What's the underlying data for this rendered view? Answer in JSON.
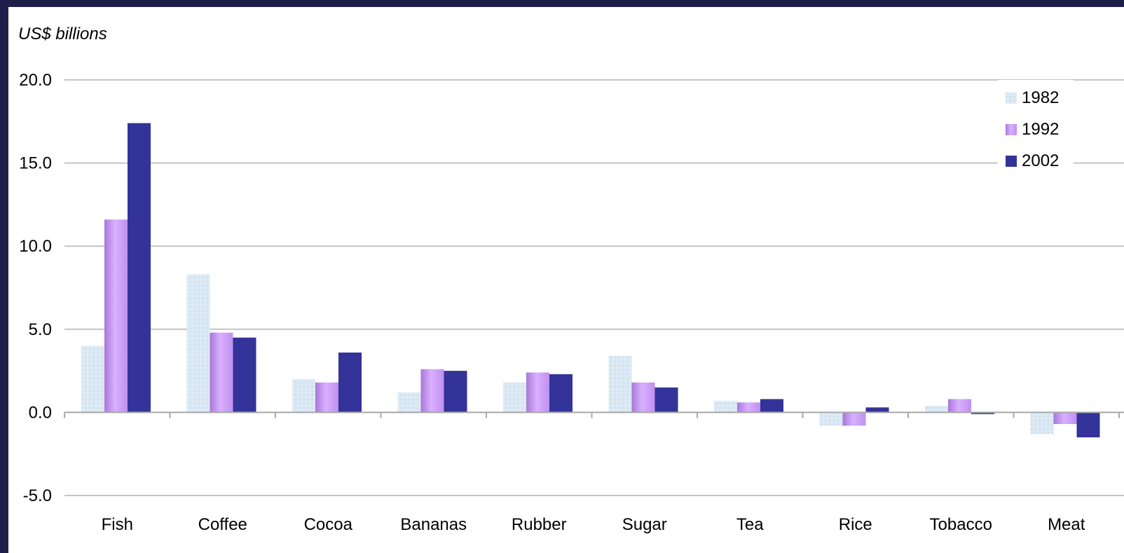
{
  "chart_data": {
    "type": "bar",
    "ylabel": "US$ billions",
    "xlabel": "",
    "ylim": [
      -5,
      20
    ],
    "yticks": [
      "20.0",
      "15.0",
      "10.0",
      "5.0",
      "0.0",
      "-5.0"
    ],
    "ytick_values": [
      20,
      15,
      10,
      5,
      0,
      -5
    ],
    "categories": [
      "Fish",
      "Coffee",
      "Cocoa",
      "Bananas",
      "Rubber",
      "Sugar",
      "Tea",
      "Rice",
      "Tobacco",
      "Meat"
    ],
    "series": [
      {
        "name": "1982",
        "color": "#d6e6f2",
        "values": [
          4.0,
          8.3,
          2.0,
          1.2,
          1.8,
          3.4,
          0.7,
          -0.8,
          0.4,
          -1.3
        ]
      },
      {
        "name": "1992",
        "color": "#c99af2",
        "values": [
          11.6,
          4.8,
          1.8,
          2.6,
          2.4,
          1.8,
          0.6,
          -0.8,
          0.8,
          -0.7
        ]
      },
      {
        "name": "2002",
        "color": "#333399",
        "values": [
          17.4,
          4.5,
          3.6,
          2.5,
          2.3,
          1.5,
          0.8,
          0.3,
          -0.1,
          -1.5
        ]
      }
    ],
    "grid": true,
    "legend_position": "top-right"
  }
}
